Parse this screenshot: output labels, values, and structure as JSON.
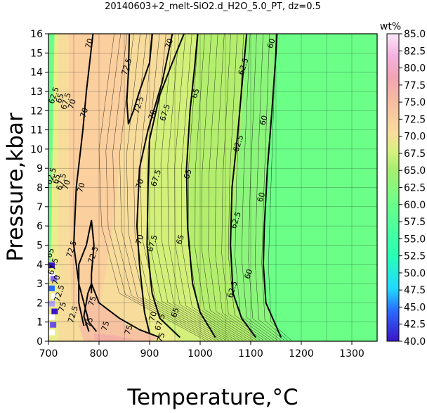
{
  "chart_data": {
    "type": "heatmap",
    "title": "20140603+2_melt-SiO2.d_H2O_5.0_PT, dz=0.5",
    "xlabel": "Temperature,°C",
    "ylabel": "Pressure,kbar",
    "xlim": [
      700,
      1350
    ],
    "ylim": [
      0,
      16
    ],
    "x_ticks": [
      "700",
      "800",
      "900",
      "1000",
      "1100",
      "1200",
      "1300"
    ],
    "y_ticks": [
      "0",
      "1",
      "2",
      "3",
      "4",
      "5",
      "6",
      "7",
      "8",
      "9",
      "10",
      "11",
      "12",
      "13",
      "14",
      "15",
      "16"
    ],
    "grid": true,
    "colorbar": {
      "unit": "wt%",
      "min": 40.0,
      "max": 85.0,
      "ticks": [
        "40.0",
        "42.5",
        "45.0",
        "47.5",
        "50.0",
        "52.5",
        "55.0",
        "57.5",
        "60.0",
        "62.5",
        "65.0",
        "67.5",
        "70.0",
        "72.5",
        "75.0",
        "77.5",
        "80.0",
        "82.5",
        "85.0"
      ]
    },
    "contour_levels": [
      {
        "level": "60",
        "points": [
          [
            1160,
            0.2
          ],
          [
            1130,
            2
          ],
          [
            1125,
            4
          ],
          [
            1127,
            6
          ],
          [
            1133,
            9
          ],
          [
            1142,
            12
          ],
          [
            1150,
            15
          ],
          [
            1152,
            16
          ]
        ],
        "labels": [
          [
            1095,
            3.5
          ],
          [
            1120,
            7.5
          ],
          [
            1125,
            11.5
          ],
          [
            1140,
            15.5
          ]
        ]
      },
      {
        "level": "62.5",
        "points": [
          [
            1110,
            0.2
          ],
          [
            1082,
            1.2
          ],
          [
            1065,
            2.5
          ],
          [
            1060,
            5
          ],
          [
            1063,
            8
          ],
          [
            1075,
            11
          ],
          [
            1085,
            14
          ],
          [
            1092,
            16
          ]
        ],
        "labels": [
          [
            1063,
            2.7
          ],
          [
            1070,
            6.3
          ],
          [
            1075,
            10.3
          ],
          [
            1085,
            14.3
          ]
        ]
      },
      {
        "level": "65",
        "points": [
          [
            1030,
            0.2
          ],
          [
            1000,
            1.5
          ],
          [
            985,
            3
          ],
          [
            975,
            6
          ],
          [
            973,
            9
          ],
          [
            980,
            12
          ],
          [
            990,
            14.5
          ],
          [
            995,
            16
          ]
        ],
        "labels": [
          [
            950,
            1.5
          ],
          [
            960,
            5.3
          ],
          [
            975,
            8.7
          ],
          [
            990,
            12.9
          ]
        ]
      },
      {
        "level": "67.5",
        "points": [
          [
            960,
            0.2
          ],
          [
            920,
            1.2
          ],
          [
            905,
            2.5
          ],
          [
            895,
            5
          ],
          [
            897,
            8
          ],
          [
            900,
            10.5
          ],
          [
            920,
            12.8
          ],
          [
            945,
            14.5
          ],
          [
            968,
            16
          ]
        ],
        "labels": [
          [
            920,
            1.0
          ],
          [
            905,
            5.1
          ],
          [
            912,
            8.5
          ],
          [
            930,
            11.9
          ]
        ]
      },
      {
        "level": "70",
        "points": [
          [
            795,
            0.5
          ],
          [
            780,
            1
          ],
          [
            760,
            3
          ],
          [
            750,
            5
          ],
          [
            755,
            8
          ],
          [
            768,
            11
          ],
          [
            775,
            13
          ],
          [
            788,
            16
          ]
        ],
        "labels": [
          [
            764,
            8.0
          ],
          [
            770,
            11.9
          ],
          [
            780,
            15.5
          ]
        ]
      },
      {
        "level": "70 (inner)",
        "points": [
          [
            900,
            0.4
          ],
          [
            890,
            1.5
          ],
          [
            880,
            4
          ],
          [
            875,
            6
          ],
          [
            880,
            9
          ],
          [
            897,
            11
          ],
          [
            925,
            13.5
          ],
          [
            945,
            16
          ]
        ],
        "labels": [
          [
            906,
            1.3
          ],
          [
            880,
            5.3
          ],
          [
            880,
            8.2
          ],
          [
            905,
            11.8
          ],
          [
            938,
            15.5
          ]
        ]
      },
      {
        "level": "72.5",
        "points": [
          [
            770,
            0.8
          ],
          [
            760,
            2
          ],
          [
            760,
            4
          ],
          [
            775,
            5
          ],
          [
            785,
            6.3
          ],
          [
            790,
            5
          ],
          [
            785,
            3.5
          ],
          [
            785,
            2.5
          ]
        ],
        "labels": [
          [
            748,
            1.4
          ],
          [
            745,
            4.8
          ],
          [
            788,
            4.5
          ]
        ]
      },
      {
        "level": "72.5 (upper)",
        "points": [
          [
            860,
            16
          ],
          [
            858,
            14
          ],
          [
            855,
            12.5
          ],
          [
            858,
            11.3
          ],
          [
            868,
            12
          ],
          [
            880,
            13
          ],
          [
            900,
            14.5
          ],
          [
            905,
            16
          ]
        ],
        "labels": [
          [
            854,
            14.3
          ],
          [
            878,
            12.3
          ]
        ]
      },
      {
        "level": "75",
        "points": [
          [
            780,
            0.5
          ],
          [
            770,
            1.3
          ],
          [
            778,
            2.5
          ],
          [
            785,
            3
          ],
          [
            800,
            2
          ],
          [
            840,
            1.2
          ],
          [
            880,
            0.6
          ],
          [
            920,
            0.2
          ]
        ],
        "labels": [
          [
            780,
            1.0
          ],
          [
            786,
            2.1
          ],
          [
            812,
            0.8
          ],
          [
            858,
            0.6
          ],
          [
            922,
            0.2
          ]
        ]
      }
    ],
    "left_edge_labels": [
      "62.5",
      "65",
      "67.5",
      "70",
      "62.5",
      "65",
      "67.5",
      "70",
      "65",
      "67.5",
      "70",
      "72.5",
      "75"
    ]
  }
}
